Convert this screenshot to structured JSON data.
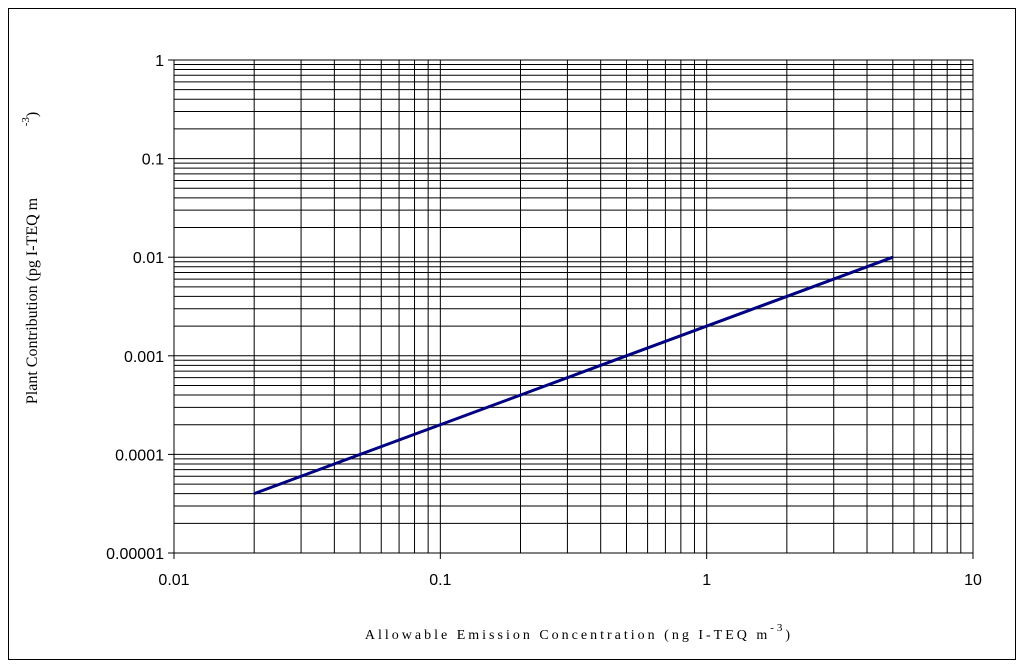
{
  "chart_data": {
    "type": "line",
    "x_scale": "log",
    "y_scale": "log",
    "xlim": [
      0.01,
      10
    ],
    "ylim": [
      1e-05,
      1
    ],
    "grid": true,
    "x_tick_labels": [
      "0.01",
      "0.1",
      "1",
      "10"
    ],
    "y_tick_labels": [
      "0.00001",
      "0.0001",
      "0.001",
      "0.01",
      "0.1",
      "1"
    ],
    "xlabel": "Allowable Emission Concentration (ng I-TEQ m",
    "xlabel_sup": "-3",
    "xlabel_end": ")",
    "ylabel": "Plant Contribution (pg I-TEQ m",
    "ylabel_sup": "-3",
    "ylabel_end": ")",
    "series": [
      {
        "color": "#000080",
        "x": [
          0.02,
          5
        ],
        "y": [
          4e-05,
          0.01
        ]
      }
    ]
  }
}
